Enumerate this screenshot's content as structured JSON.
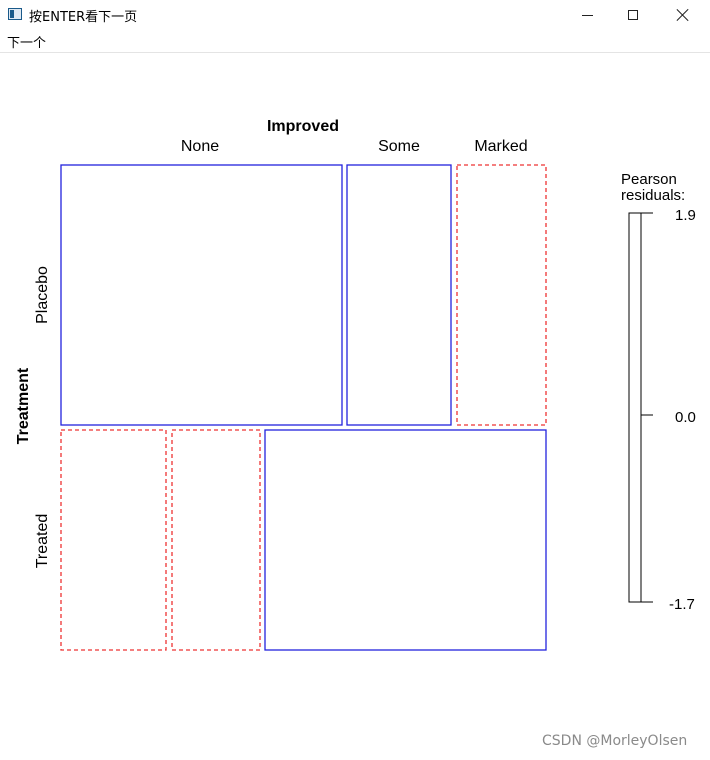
{
  "window": {
    "title": "按ENTER看下一页",
    "controls": [
      "minimize-icon",
      "maximize-icon",
      "close-icon"
    ]
  },
  "menubar": {
    "items": [
      {
        "label": "下一个"
      }
    ]
  },
  "mosaic": {
    "column_variable": "Improved",
    "row_variable": "Treatment",
    "columns": [
      "None",
      "Some",
      "Marked"
    ],
    "rows": [
      "Placebo",
      "Treated"
    ],
    "cells": [
      {
        "row": "Placebo",
        "col": "None",
        "row_share": 0.54,
        "col_share": 0.58,
        "style": "positive-residual",
        "color": "#2222dd"
      },
      {
        "row": "Placebo",
        "col": "Some",
        "row_share": 0.54,
        "col_share": 0.22,
        "style": "positive-residual",
        "color": "#2222dd"
      },
      {
        "row": "Placebo",
        "col": "Marked",
        "row_share": 0.54,
        "col_share": 0.19,
        "style": "negative-residual",
        "color": "#ee3333"
      },
      {
        "row": "Treated",
        "col": "None",
        "row_share": 0.46,
        "col_share": 0.22,
        "style": "negative-residual",
        "color": "#ee3333"
      },
      {
        "row": "Treated",
        "col": "Some",
        "row_share": 0.46,
        "col_share": 0.18,
        "style": "negative-residual",
        "color": "#ee3333"
      },
      {
        "row": "Treated",
        "col": "Marked",
        "row_share": 0.46,
        "col_share": 0.6,
        "style": "positive-residual",
        "color": "#2222dd"
      }
    ],
    "legend": {
      "title_line1": "Pearson",
      "title_line2": "residuals:",
      "max_label": "1.9",
      "mid_label": "0.0",
      "min_label": "-1.7",
      "max": 1.9,
      "mid": 0.0,
      "min": -1.7
    }
  },
  "watermark": "CSDN @MorleyOlsen"
}
